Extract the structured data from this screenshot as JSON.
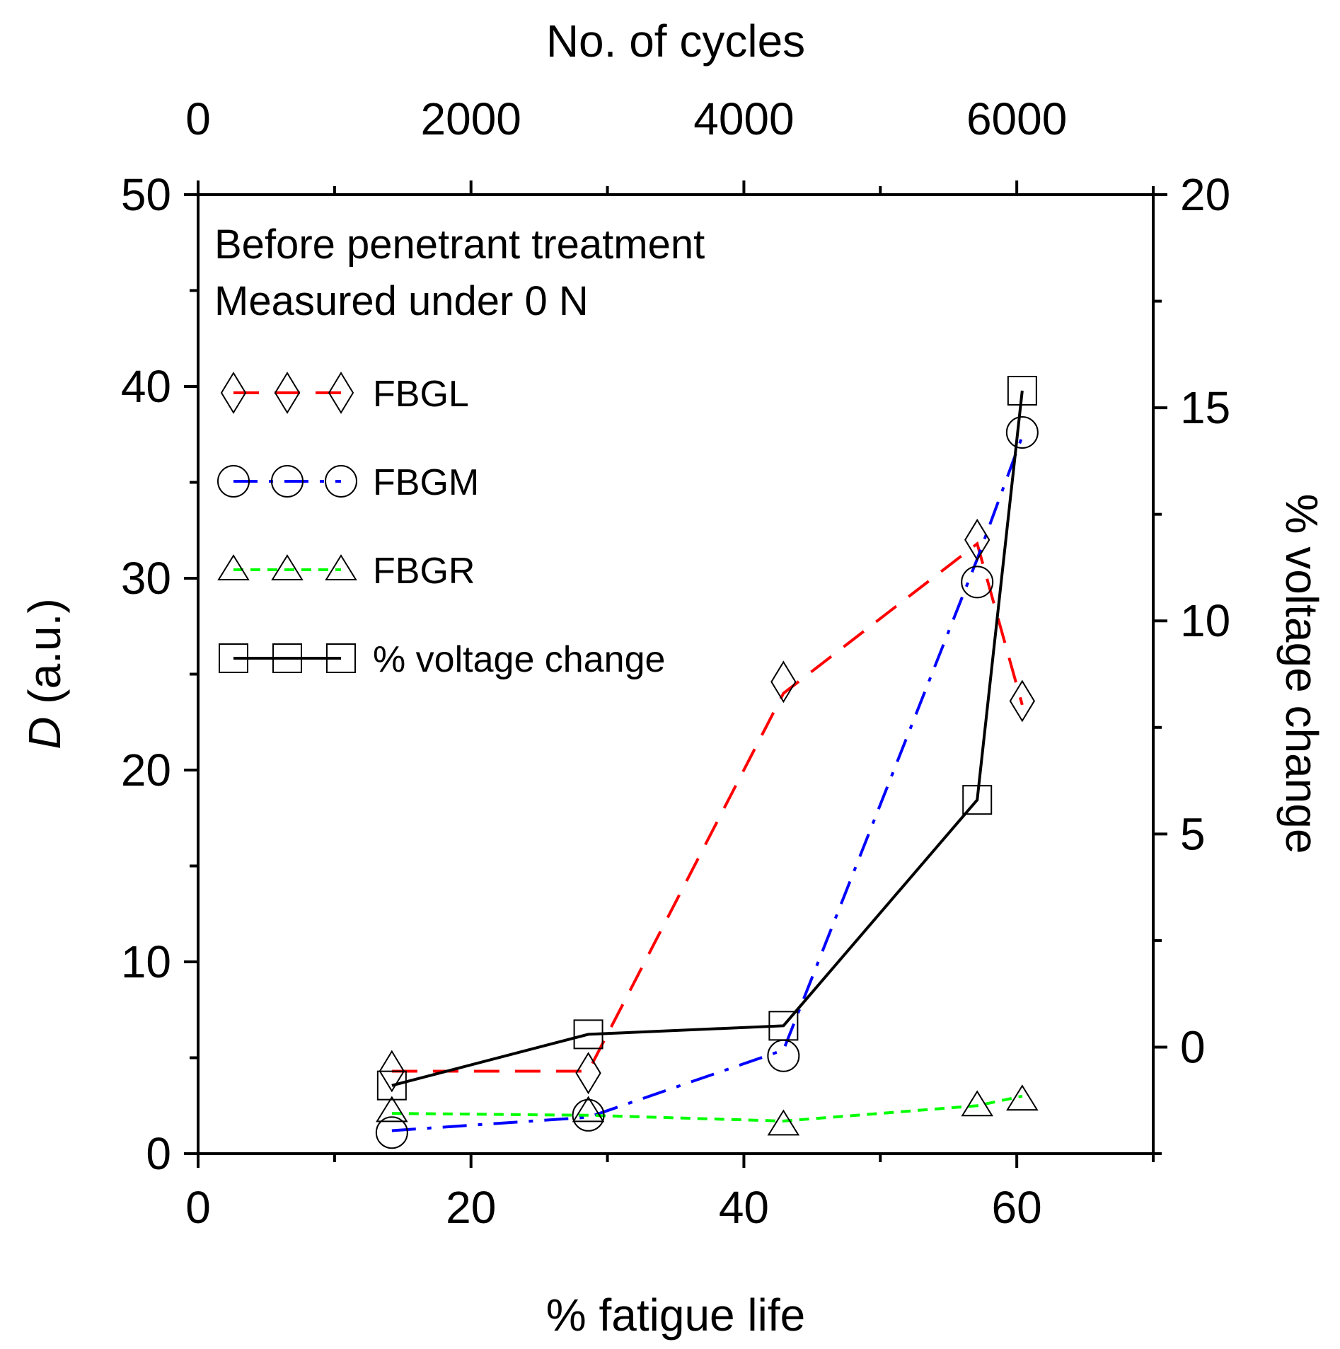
{
  "chart_data": {
    "type": "line",
    "annotations": [
      "Before penetrant treatment",
      "Measured under 0 N"
    ],
    "x_axis": {
      "label": "% fatigue life",
      "range": [
        0,
        70
      ],
      "ticks": [
        0,
        20,
        40,
        60
      ],
      "tick_labels": [
        "0",
        "20",
        "40",
        "60"
      ],
      "minor_ticks": [
        10,
        30,
        50,
        70
      ]
    },
    "x2_axis": {
      "label": "No. of cycles",
      "range": [
        0,
        7000
      ],
      "ticks": [
        0,
        2000,
        4000,
        6000
      ],
      "tick_labels": [
        "0",
        "2000",
        "4000",
        "6000"
      ],
      "minor_ticks": [
        1000,
        3000,
        5000,
        7000
      ]
    },
    "y_axis": {
      "label_italic": "D",
      "label_rest": " (a.u.)",
      "range": [
        0,
        50
      ],
      "ticks": [
        0,
        10,
        20,
        30,
        40,
        50
      ],
      "tick_labels": [
        "0",
        "10",
        "20",
        "30",
        "40",
        "50"
      ],
      "minor_ticks": [
        5,
        15,
        25,
        35,
        45
      ]
    },
    "y2_axis": {
      "label": "% voltage change",
      "range": [
        -2.5,
        20
      ],
      "ticks": [
        0,
        5,
        10,
        15,
        20
      ],
      "tick_labels": [
        "0",
        "5",
        "10",
        "15",
        "20"
      ],
      "minor_ticks": [
        -2.5,
        2.5,
        7.5,
        12.5,
        17.5
      ]
    },
    "series": [
      {
        "name": "FBGL",
        "axis": "left",
        "x": [
          14.2,
          28.6,
          42.9,
          57.1,
          60.4
        ],
        "y": [
          4.3,
          4.2,
          24.6,
          32.0,
          23.6
        ],
        "line_y": [
          4.3,
          4.3,
          24.0,
          31.8,
          23.4
        ],
        "color": "#ff0000",
        "dash": "36,22",
        "marker": "diamond"
      },
      {
        "name": "FBGM",
        "axis": "left",
        "x": [
          14.2,
          28.6,
          42.9,
          57.1,
          60.4
        ],
        "y": [
          1.1,
          2.0,
          5.1,
          29.8,
          37.6
        ],
        "line_y": [
          1.2,
          1.9,
          5.4,
          31.0,
          37.4
        ],
        "color": "#0000ff",
        "dash": "34,16,6,16",
        "marker": "circle"
      },
      {
        "name": "FBGR",
        "axis": "left",
        "x": [
          14.2,
          28.6,
          42.9,
          57.1,
          60.4
        ],
        "y": [
          2.2,
          2.2,
          1.5,
          2.5,
          2.8
        ],
        "line_y": [
          2.1,
          2.0,
          1.7,
          2.5,
          3.0
        ],
        "color": "#00ff00",
        "dash": "14,10",
        "marker": "triangle"
      },
      {
        "name": "% voltage change",
        "axis": "right",
        "x": [
          14.2,
          28.6,
          42.9,
          57.1,
          60.4
        ],
        "y": [
          -0.9,
          0.3,
          0.5,
          5.8,
          15.4
        ],
        "line_y": [
          -0.9,
          0.3,
          0.5,
          5.8,
          15.4
        ],
        "color": "#000000",
        "dash": "none",
        "marker": "square"
      }
    ]
  }
}
